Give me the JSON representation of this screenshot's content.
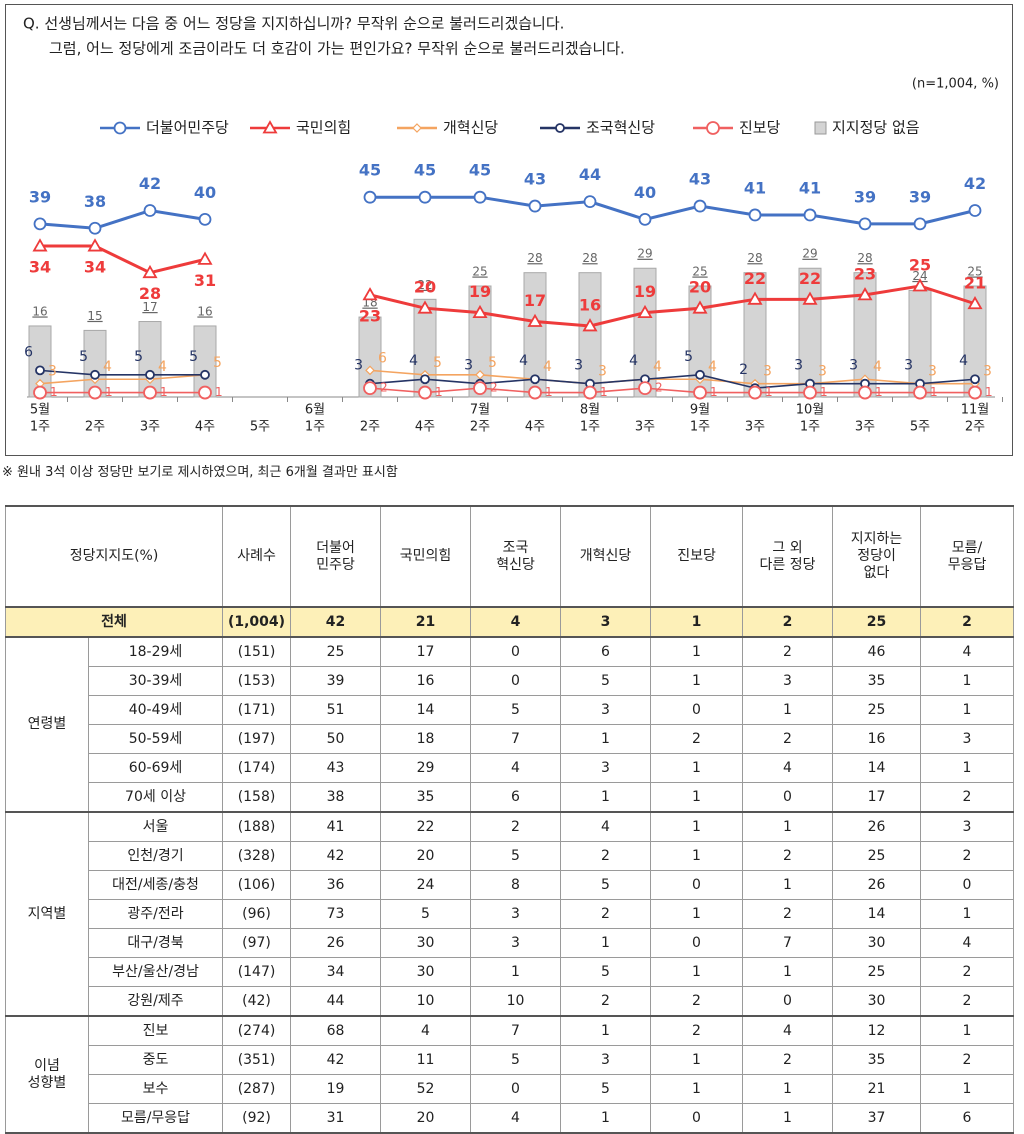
{
  "chart_data": {
    "type": "line",
    "title": [
      "Q. 선생님께서는 다음 중 어느 정당을 지지하십니까? 무작위 순으로 불러드리겠습니다.",
      "그럼, 어느 정당에게 조금이라도 더 호감이 가는 편인가요? 무작위 순으로 불러드리겠습니다."
    ],
    "note": "(n=1,004, %)",
    "months": [
      "5월",
      null,
      null,
      null,
      null,
      "6월",
      null,
      null,
      "7월",
      null,
      "8월",
      null,
      "9월",
      null,
      "10월",
      null,
      null,
      "11월"
    ],
    "categories": [
      "1주",
      "2주",
      "3주",
      "4주",
      "5주",
      "1주",
      "2주",
      "4주",
      "2주",
      "4주",
      "1주",
      "3주",
      "1주",
      "3주",
      "1주",
      "3주",
      "5주",
      "2주"
    ],
    "ylim": [
      0,
      50
    ],
    "legend": "top",
    "series": [
      {
        "name": "지지정당 없음",
        "type": "bar",
        "color": "#d4d4d4",
        "values": [
          16,
          15,
          17,
          16,
          null,
          null,
          18,
          22,
          25,
          28,
          28,
          29,
          25,
          28,
          29,
          28,
          24,
          25
        ]
      },
      {
        "name": "더불어민주당",
        "type": "line",
        "marker": "circle",
        "color": "#4472c4",
        "values": [
          39,
          38,
          42,
          40,
          null,
          null,
          45,
          45,
          45,
          43,
          44,
          40,
          43,
          41,
          41,
          39,
          39,
          42
        ]
      },
      {
        "name": "국민의힘",
        "type": "line",
        "marker": "triangle",
        "color": "#ee3b3b",
        "values": [
          34,
          34,
          28,
          31,
          null,
          null,
          23,
          20,
          19,
          17,
          16,
          19,
          20,
          22,
          22,
          23,
          25,
          21
        ]
      },
      {
        "name": "개혁신당",
        "type": "line",
        "marker": "diamond",
        "color": "#f4a460",
        "values": [
          3,
          4,
          4,
          5,
          null,
          null,
          6,
          5,
          5,
          4,
          3,
          4,
          4,
          3,
          3,
          4,
          3,
          3
        ]
      },
      {
        "name": "조국혁신당",
        "type": "line",
        "marker": "circle-small",
        "color": "#253465",
        "values": [
          6,
          5,
          5,
          5,
          null,
          null,
          3,
          4,
          3,
          4,
          3,
          4,
          5,
          2,
          3,
          3,
          3,
          4
        ]
      },
      {
        "name": "진보당",
        "type": "line",
        "marker": "circle-large",
        "color": "#f06060",
        "values": [
          1,
          1,
          1,
          1,
          null,
          null,
          2,
          1,
          2,
          1,
          1,
          2,
          1,
          1,
          1,
          1,
          1,
          1
        ]
      }
    ]
  },
  "footnote": "※ 원내 3석 이상 정당만 보기로 제시하였으며, 최근 6개월 결과만 표시함",
  "table": {
    "header_group": "정당지지도(%)",
    "header_n": "사례수",
    "columns": [
      "더불어\n민주당",
      "국민의힘",
      "조국\n혁신당",
      "개혁신당",
      "진보당",
      "그 외\n다른 정당",
      "지지하는\n정당이\n없다",
      "모름/\n무응답"
    ],
    "total": {
      "label": "전체",
      "n": "(1,004)",
      "values": [
        42,
        21,
        4,
        3,
        1,
        2,
        25,
        2
      ]
    },
    "groups": [
      {
        "label": "연령별",
        "rows": [
          {
            "label": "18-29세",
            "n": "(151)",
            "values": [
              25,
              17,
              0,
              6,
              1,
              2,
              46,
              4
            ]
          },
          {
            "label": "30-39세",
            "n": "(153)",
            "values": [
              39,
              16,
              0,
              5,
              1,
              3,
              35,
              1
            ]
          },
          {
            "label": "40-49세",
            "n": "(171)",
            "values": [
              51,
              14,
              5,
              3,
              0,
              1,
              25,
              1
            ]
          },
          {
            "label": "50-59세",
            "n": "(197)",
            "values": [
              50,
              18,
              7,
              1,
              2,
              2,
              16,
              3
            ]
          },
          {
            "label": "60-69세",
            "n": "(174)",
            "values": [
              43,
              29,
              4,
              3,
              1,
              4,
              14,
              1
            ]
          },
          {
            "label": "70세 이상",
            "n": "(158)",
            "values": [
              38,
              35,
              6,
              1,
              1,
              0,
              17,
              2
            ]
          }
        ]
      },
      {
        "label": "지역별",
        "rows": [
          {
            "label": "서울",
            "n": "(188)",
            "values": [
              41,
              22,
              2,
              4,
              1,
              1,
              26,
              3
            ]
          },
          {
            "label": "인천/경기",
            "n": "(328)",
            "values": [
              42,
              20,
              5,
              2,
              1,
              2,
              25,
              2
            ]
          },
          {
            "label": "대전/세종/충청",
            "n": "(106)",
            "values": [
              36,
              24,
              8,
              5,
              0,
              1,
              26,
              0
            ]
          },
          {
            "label": "광주/전라",
            "n": "(96)",
            "values": [
              73,
              5,
              3,
              2,
              1,
              2,
              14,
              1
            ]
          },
          {
            "label": "대구/경북",
            "n": "(97)",
            "values": [
              26,
              30,
              3,
              1,
              0,
              7,
              30,
              4
            ]
          },
          {
            "label": "부산/울산/경남",
            "n": "(147)",
            "values": [
              34,
              30,
              1,
              5,
              1,
              1,
              25,
              2
            ]
          },
          {
            "label": "강원/제주",
            "n": "(42)",
            "values": [
              44,
              10,
              10,
              2,
              2,
              0,
              30,
              2
            ]
          }
        ]
      },
      {
        "label": "이념\n성향별",
        "rows": [
          {
            "label": "진보",
            "n": "(274)",
            "values": [
              68,
              4,
              7,
              1,
              2,
              4,
              12,
              1
            ]
          },
          {
            "label": "중도",
            "n": "(351)",
            "values": [
              42,
              11,
              5,
              3,
              1,
              2,
              35,
              2
            ]
          },
          {
            "label": "보수",
            "n": "(287)",
            "values": [
              19,
              52,
              0,
              5,
              1,
              1,
              21,
              1
            ]
          },
          {
            "label": "모름/무응답",
            "n": "(92)",
            "values": [
              31,
              20,
              4,
              1,
              0,
              1,
              37,
              6
            ]
          }
        ]
      }
    ]
  }
}
